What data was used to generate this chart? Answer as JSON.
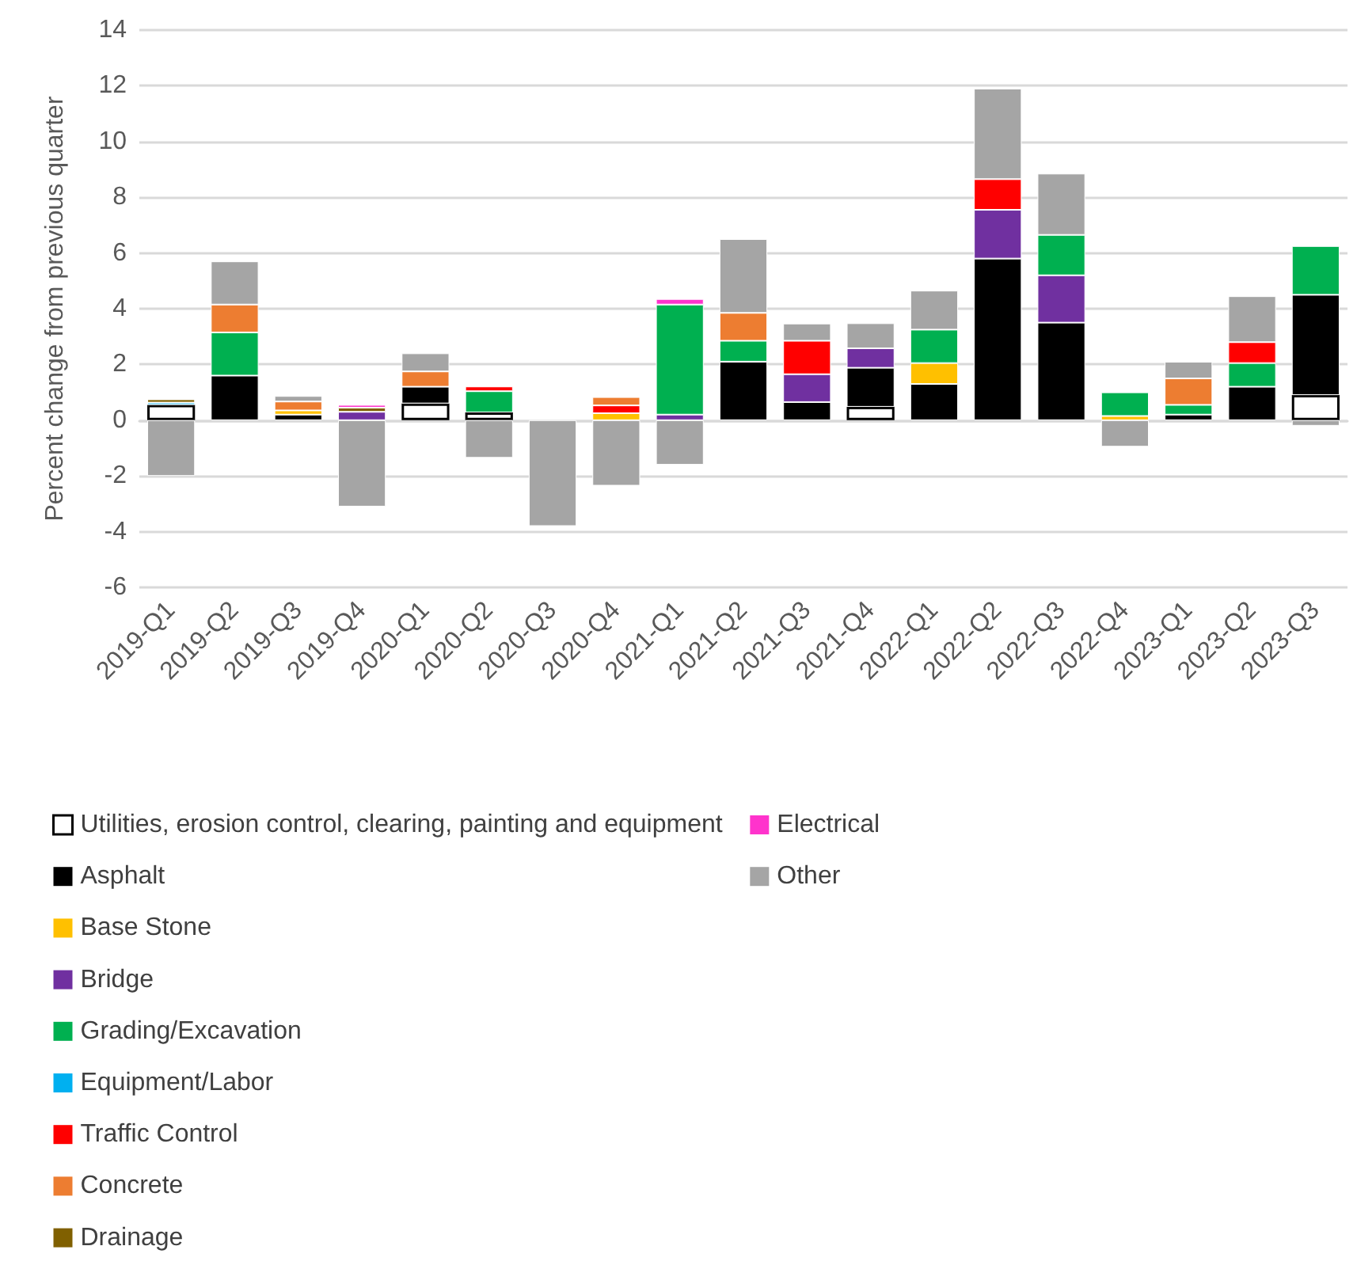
{
  "chart_data": {
    "type": "bar",
    "stacked": true,
    "ylabel": "Percent change from previous quarter",
    "categories": [
      "2019-Q1",
      "2019-Q2",
      "2019-Q3",
      "2019-Q4",
      "2020-Q1",
      "2020-Q2",
      "2020-Q3",
      "2020-Q4",
      "2021-Q1",
      "2021-Q2",
      "2021-Q3",
      "2021-Q4",
      "2022-Q1",
      "2022-Q2",
      "2022-Q3",
      "2022-Q4",
      "2023-Q1",
      "2023-Q2",
      "2023-Q3"
    ],
    "ylim": [
      -6,
      14
    ],
    "yticks": [
      -6,
      -4,
      -2,
      0,
      2,
      4,
      6,
      8,
      10,
      12,
      14
    ],
    "grid": "y",
    "legend": "bottom",
    "series": [
      {
        "name": "Utilities, erosion control, clearing, painting and equipment",
        "color": "#ffffff",
        "values": [
          0.55,
          null,
          null,
          null,
          0.6,
          0.28,
          null,
          null,
          null,
          null,
          null,
          0.48,
          null,
          null,
          null,
          null,
          null,
          null,
          0.9
        ]
      },
      {
        "name": "Asphalt",
        "color": "#000000",
        "values": [
          null,
          1.6,
          0.2,
          null,
          0.6,
          null,
          null,
          null,
          null,
          2.1,
          0.65,
          1.4,
          1.3,
          5.8,
          3.5,
          null,
          0.2,
          1.2,
          3.6
        ]
      },
      {
        "name": "Base Stone",
        "color": "#ffc000",
        "values": [
          null,
          null,
          0.15,
          null,
          null,
          null,
          null,
          0.25,
          null,
          null,
          null,
          null,
          0.75,
          null,
          null,
          0.15,
          null,
          null,
          null
        ]
      },
      {
        "name": "Bridge",
        "color": "#7030a0",
        "values": [
          null,
          null,
          null,
          0.3,
          null,
          null,
          null,
          null,
          0.2,
          null,
          1.0,
          0.7,
          null,
          1.75,
          1.7,
          null,
          null,
          null,
          null
        ]
      },
      {
        "name": "Grading/Excavation",
        "color": "#00b050",
        "values": [
          null,
          1.55,
          null,
          null,
          null,
          0.76,
          null,
          null,
          3.95,
          0.75,
          null,
          null,
          1.2,
          null,
          1.45,
          0.85,
          0.35,
          0.85,
          1.75
        ]
      },
      {
        "name": "Equipment/Labor",
        "color": "#00b0f0",
        "values": [
          0.08,
          null,
          null,
          null,
          null,
          null,
          null,
          null,
          null,
          null,
          null,
          null,
          null,
          null,
          null,
          null,
          null,
          null,
          null
        ]
      },
      {
        "name": "Traffic Control",
        "color": "#ff0000",
        "values": [
          null,
          null,
          null,
          null,
          null,
          0.17,
          null,
          0.28,
          null,
          null,
          1.2,
          null,
          null,
          1.1,
          null,
          null,
          null,
          0.75,
          null
        ]
      },
      {
        "name": "Concrete",
        "color": "#ed7d31",
        "values": [
          null,
          1.0,
          0.32,
          null,
          0.55,
          null,
          null,
          0.3,
          null,
          1.0,
          null,
          null,
          null,
          null,
          null,
          null,
          0.95,
          null,
          null
        ]
      },
      {
        "name": "Drainage",
        "color": "#806000",
        "values": [
          0.12,
          null,
          null,
          0.15,
          null,
          null,
          null,
          null,
          null,
          null,
          null,
          null,
          null,
          null,
          null,
          null,
          null,
          null,
          null
        ]
      },
      {
        "name": "Electrical",
        "color": "#ff33cc",
        "values": [
          null,
          null,
          null,
          0.1,
          null,
          null,
          null,
          null,
          0.2,
          null,
          null,
          null,
          null,
          null,
          null,
          null,
          null,
          null,
          null
        ]
      },
      {
        "name": "Other",
        "color": "#a5a5a5",
        "values": [
          -2.0,
          1.55,
          0.2,
          -3.1,
          0.65,
          -1.35,
          -3.8,
          -2.35,
          -1.6,
          2.65,
          0.62,
          0.9,
          1.4,
          3.25,
          2.2,
          -0.95,
          0.6,
          1.65,
          -0.2
        ]
      }
    ]
  }
}
